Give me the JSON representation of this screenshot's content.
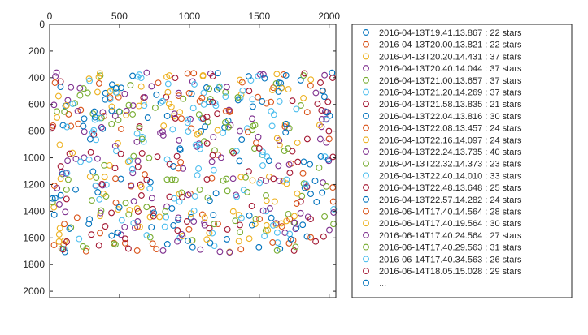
{
  "chart_data": {
    "type": "scatter",
    "title": "",
    "xlabel": "",
    "ylabel": "",
    "xlim": [
      0,
      2048
    ],
    "ylim": [
      0,
      2048
    ],
    "x_axis_position": "top",
    "y_reversed": true,
    "x_ticks": [
      0,
      500,
      1000,
      1500,
      2000
    ],
    "y_ticks": [
      0,
      200,
      400,
      600,
      800,
      1000,
      1200,
      1400,
      1600,
      1800,
      2000
    ],
    "grid": false,
    "legend_position": "right-outside",
    "marker": "open-circle",
    "series": [
      {
        "name": "2016-04-13T19.41.13.867 : 22 stars",
        "color": "#0072BD",
        "count": 22
      },
      {
        "name": "2016-04-13T20.00.13.821 : 22 stars",
        "color": "#D95319",
        "count": 22
      },
      {
        "name": "2016-04-13T20.20.14.431 : 37 stars",
        "color": "#EDB120",
        "count": 37
      },
      {
        "name": "2016-04-13T20.40.14.044 : 37 stars",
        "color": "#7E2F8E",
        "count": 37
      },
      {
        "name": "2016-04-13T21.00.13.657 : 37 stars",
        "color": "#77AC30",
        "count": 37
      },
      {
        "name": "2016-04-13T21.20.14.269 : 37 stars",
        "color": "#4DBEEE",
        "count": 37
      },
      {
        "name": "2016-04-13T21.58.13.835 : 21 stars",
        "color": "#A2142F",
        "count": 21
      },
      {
        "name": "2016-04-13T22.04.13.816 : 30 stars",
        "color": "#0072BD",
        "count": 30
      },
      {
        "name": "2016-04-13T22.08.13.457 : 24 stars",
        "color": "#D95319",
        "count": 24
      },
      {
        "name": "2016-04-13T22.16.14.097 : 24 stars",
        "color": "#EDB120",
        "count": 24
      },
      {
        "name": "2016-04-13T22.24.13.735 : 40 stars",
        "color": "#7E2F8E",
        "count": 40
      },
      {
        "name": "2016-04-13T22.32.14.373 : 23 stars",
        "color": "#77AC30",
        "count": 23
      },
      {
        "name": "2016-04-13T22.40.14.010 : 33 stars",
        "color": "#4DBEEE",
        "count": 33
      },
      {
        "name": "2016-04-13T22.48.13.648 : 25 stars",
        "color": "#A2142F",
        "count": 25
      },
      {
        "name": "2016-04-13T22.57.14.282 : 24 stars",
        "color": "#0072BD",
        "count": 24
      },
      {
        "name": "2016-06-14T17.40.14.564 : 28 stars",
        "color": "#D95319",
        "count": 28
      },
      {
        "name": "2016-06-14T17.40.19.564 : 30 stars",
        "color": "#EDB120",
        "count": 30
      },
      {
        "name": "2016-06-14T17.40.24.564 : 27 stars",
        "color": "#7E2F8E",
        "count": 27
      },
      {
        "name": "2016-06-14T17.40.29.563 : 31 stars",
        "color": "#77AC30",
        "count": 31
      },
      {
        "name": "2016-06-14T17.40.34.563 : 26 stars",
        "color": "#4DBEEE",
        "count": 26
      },
      {
        "name": "2016-06-14T18.05.15.028 : 29 stars",
        "color": "#A2142F",
        "count": 29
      },
      {
        "name": "...",
        "color": "#0072BD",
        "count": 28
      }
    ]
  }
}
